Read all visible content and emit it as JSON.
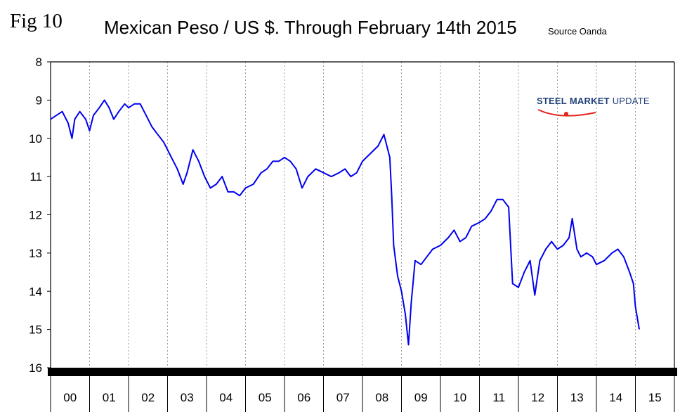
{
  "fig_label": "Fig 10",
  "title": "Mexican Peso / US $. Through February 14th 2015",
  "source": "Source Oanda",
  "logo": {
    "word1": "STEEL",
    "word2": "MARKET",
    "word3": "UPDATE",
    "accent": "#e2231a",
    "color": "#1f3f7a"
  },
  "colors": {
    "line": "#0000ee",
    "axis_band": "#000000",
    "grid": "#9a9a9a"
  },
  "chart_data": {
    "type": "line",
    "title": "Mexican Peso / US $. Through February 14th 2015",
    "xlabel": "",
    "ylabel": "",
    "ylim": [
      8,
      16
    ],
    "y_inverted": true,
    "xlim": [
      2000.0,
      2016.0
    ],
    "grid": "vertical dotted at year boundaries",
    "legend": "none",
    "x_tick_labels": [
      "00",
      "01",
      "02",
      "03",
      "04",
      "05",
      "06",
      "07",
      "08",
      "09",
      "10",
      "11",
      "12",
      "13",
      "14",
      "15"
    ],
    "y_tick_labels": [
      "8",
      "9",
      "10",
      "11",
      "12",
      "13",
      "14",
      "15",
      "16"
    ],
    "series": [
      {
        "color": "#0000ee",
        "x": [
          2000.0,
          2000.15,
          2000.3,
          2000.45,
          2000.55,
          2000.62,
          2000.75,
          2000.9,
          2001.0,
          2001.1,
          2001.25,
          2001.38,
          2001.5,
          2001.62,
          2001.75,
          2001.9,
          2002.0,
          2002.15,
          2002.3,
          2002.45,
          2002.6,
          2002.75,
          2002.9,
          2003.0,
          2003.1,
          2003.25,
          2003.4,
          2003.5,
          2003.65,
          2003.8,
          2003.95,
          2004.1,
          2004.25,
          2004.4,
          2004.55,
          2004.7,
          2004.85,
          2005.0,
          2005.2,
          2005.4,
          2005.55,
          2005.7,
          2005.85,
          2006.0,
          2006.15,
          2006.3,
          2006.45,
          2006.6,
          2006.8,
          2007.0,
          2007.2,
          2007.4,
          2007.55,
          2007.7,
          2007.85,
          2008.0,
          2008.2,
          2008.4,
          2008.55,
          2008.7,
          2008.75,
          2008.8,
          2008.9,
          2009.0,
          2009.1,
          2009.18,
          2009.25,
          2009.35,
          2009.5,
          2009.65,
          2009.8,
          2010.0,
          2010.2,
          2010.35,
          2010.5,
          2010.65,
          2010.8,
          2011.0,
          2011.15,
          2011.3,
          2011.45,
          2011.6,
          2011.75,
          2011.85,
          2012.0,
          2012.15,
          2012.3,
          2012.42,
          2012.55,
          2012.7,
          2012.85,
          2013.0,
          2013.15,
          2013.3,
          2013.38,
          2013.5,
          2013.6,
          2013.75,
          2013.9,
          2014.0,
          2014.2,
          2014.4,
          2014.55,
          2014.7,
          2014.85,
          2014.95,
          2015.0,
          2015.05,
          2015.1
        ],
        "y": [
          9.5,
          9.4,
          9.3,
          9.6,
          10.0,
          9.5,
          9.3,
          9.5,
          9.8,
          9.4,
          9.2,
          9.0,
          9.2,
          9.5,
          9.3,
          9.1,
          9.2,
          9.1,
          9.1,
          9.4,
          9.7,
          9.9,
          10.1,
          10.3,
          10.5,
          10.8,
          11.2,
          10.9,
          10.3,
          10.6,
          11.0,
          11.3,
          11.2,
          11.0,
          11.4,
          11.4,
          11.5,
          11.3,
          11.2,
          10.9,
          10.8,
          10.6,
          10.6,
          10.5,
          10.6,
          10.8,
          11.3,
          11.0,
          10.8,
          10.9,
          11.0,
          10.9,
          10.8,
          11.0,
          10.9,
          10.6,
          10.4,
          10.2,
          9.9,
          10.5,
          11.5,
          12.8,
          13.6,
          14.0,
          14.6,
          15.4,
          14.3,
          13.2,
          13.3,
          13.1,
          12.9,
          12.8,
          12.6,
          12.4,
          12.7,
          12.6,
          12.3,
          12.2,
          12.1,
          11.9,
          11.6,
          11.6,
          11.8,
          13.8,
          13.9,
          13.5,
          13.2,
          14.1,
          13.2,
          12.9,
          12.7,
          12.9,
          12.8,
          12.6,
          12.1,
          12.9,
          13.1,
          13.0,
          13.1,
          13.3,
          13.2,
          13.0,
          12.9,
          13.1,
          13.5,
          13.8,
          14.4,
          14.7,
          15.0
        ]
      }
    ]
  }
}
